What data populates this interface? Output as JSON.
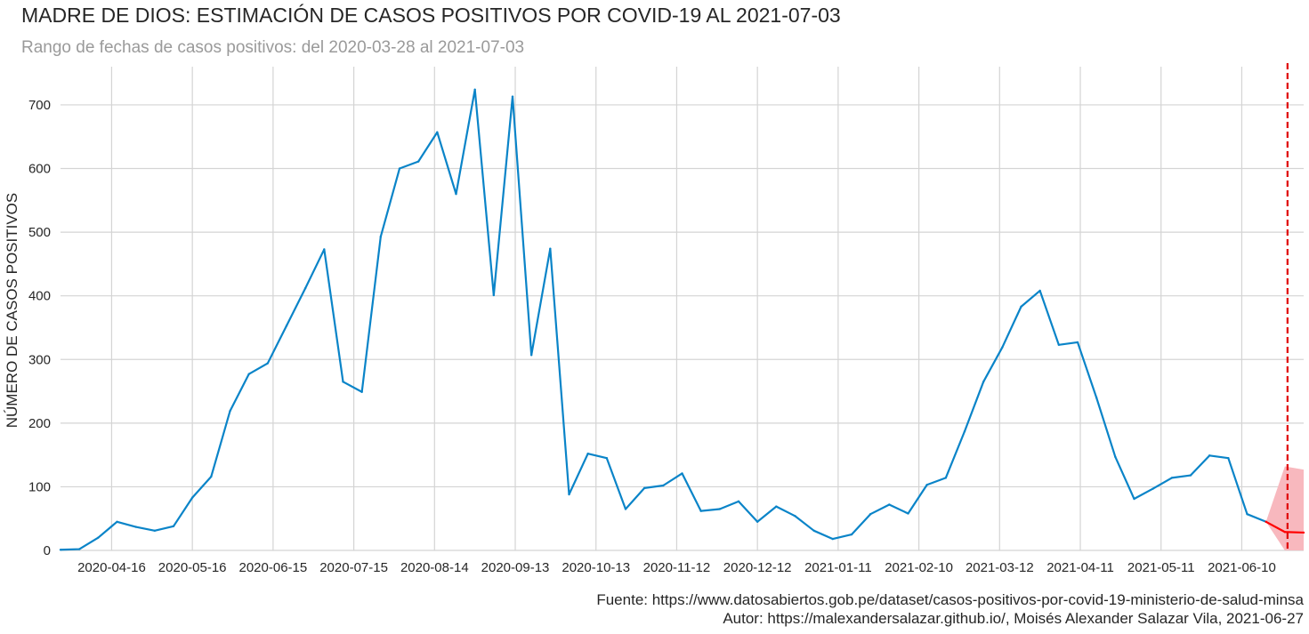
{
  "title": "MADRE DE DIOS: ESTIMACIÓN DE CASOS POSITIVOS POR COVID-19 AL 2021-07-03",
  "subtitle": "Rango de fechas de casos positivos: del 2020-03-28 al 2021-07-03",
  "source_line": "Fuente: https://www.datosabiertos.gob.pe/dataset/casos-positivos-por-covid-19-ministerio-de-salud-minsa",
  "author_line": "Autor: https://malexandersalazar.github.io/, Moisés Alexander Salazar Vila, 2021-06-27",
  "chart_data": {
    "type": "line",
    "title": "MADRE DE DIOS: ESTIMACIÓN DE CASOS POSITIVOS POR COVID-19 AL 2021-07-03",
    "xlabel": "",
    "ylabel": "NÚMERO DE CASOS POSITIVOS",
    "x_ticks": [
      "2020-04-16",
      "2020-05-16",
      "2020-06-15",
      "2020-07-15",
      "2020-08-14",
      "2020-09-13",
      "2020-10-13",
      "2020-11-12",
      "2020-12-12",
      "2021-01-11",
      "2021-02-10",
      "2021-03-12",
      "2021-04-11",
      "2021-05-11",
      "2021-06-10"
    ],
    "y_ticks": [
      0,
      100,
      200,
      300,
      400,
      500,
      600,
      700
    ],
    "xlim": [
      "2020-03-28",
      "2021-07-03"
    ],
    "ylim": [
      0,
      760
    ],
    "grid": true,
    "cutoff_date": "2021-06-27",
    "colors": {
      "observed": "#0a84c8",
      "forecast": "#ff0000",
      "band": "#f8b8be",
      "cutoff": "#e00000",
      "grid": "#d4d4d4"
    },
    "series": [
      {
        "role": "observed",
        "points": [
          [
            "2020-03-28",
            1
          ],
          [
            "2020-04-04",
            2
          ],
          [
            "2020-04-11",
            20
          ],
          [
            "2020-04-18",
            45
          ],
          [
            "2020-04-25",
            37
          ],
          [
            "2020-05-02",
            31
          ],
          [
            "2020-05-09",
            38
          ],
          [
            "2020-05-16",
            83
          ],
          [
            "2020-05-23",
            116
          ],
          [
            "2020-05-30",
            219
          ],
          [
            "2020-06-06",
            277
          ],
          [
            "2020-06-13",
            294
          ],
          [
            "2020-06-20",
            353
          ],
          [
            "2020-06-27",
            412
          ],
          [
            "2020-07-04",
            473
          ],
          [
            "2020-07-11",
            265
          ],
          [
            "2020-07-18",
            249
          ],
          [
            "2020-07-25",
            493
          ],
          [
            "2020-08-01",
            600
          ],
          [
            "2020-08-08",
            611
          ],
          [
            "2020-08-15",
            657
          ],
          [
            "2020-08-22",
            560
          ],
          [
            "2020-08-29",
            724
          ],
          [
            "2020-09-05",
            401
          ],
          [
            "2020-09-12",
            713
          ],
          [
            "2020-09-19",
            307
          ],
          [
            "2020-09-26",
            474
          ],
          [
            "2020-10-03",
            88
          ],
          [
            "2020-10-10",
            152
          ],
          [
            "2020-10-17",
            145
          ],
          [
            "2020-10-24",
            65
          ],
          [
            "2020-10-31",
            98
          ],
          [
            "2020-11-07",
            102
          ],
          [
            "2020-11-14",
            121
          ],
          [
            "2020-11-21",
            62
          ],
          [
            "2020-11-28",
            65
          ],
          [
            "2020-12-05",
            77
          ],
          [
            "2020-12-12",
            45
          ],
          [
            "2020-12-19",
            69
          ],
          [
            "2020-12-26",
            54
          ],
          [
            "2021-01-02",
            31
          ],
          [
            "2021-01-09",
            18
          ],
          [
            "2021-01-16",
            25
          ],
          [
            "2021-01-23",
            57
          ],
          [
            "2021-01-30",
            72
          ],
          [
            "2021-02-06",
            58
          ],
          [
            "2021-02-13",
            103
          ],
          [
            "2021-02-20",
            114
          ],
          [
            "2021-02-27",
            187
          ],
          [
            "2021-03-06",
            265
          ],
          [
            "2021-03-13",
            319
          ],
          [
            "2021-03-20",
            383
          ],
          [
            "2021-03-27",
            408
          ],
          [
            "2021-04-03",
            323
          ],
          [
            "2021-04-10",
            327
          ],
          [
            "2021-04-17",
            240
          ],
          [
            "2021-04-24",
            147
          ],
          [
            "2021-05-01",
            81
          ],
          [
            "2021-05-08",
            97
          ],
          [
            "2021-05-15",
            114
          ],
          [
            "2021-05-22",
            118
          ],
          [
            "2021-05-29",
            149
          ],
          [
            "2021-06-05",
            145
          ],
          [
            "2021-06-12",
            57
          ],
          [
            "2021-06-19",
            45
          ]
        ]
      },
      {
        "role": "forecast",
        "points": [
          [
            "2021-06-19",
            45
          ],
          [
            "2021-06-26",
            29
          ],
          [
            "2021-07-03",
            28
          ]
        ],
        "lower": [
          [
            "2021-06-19",
            45
          ],
          [
            "2021-06-26",
            0
          ],
          [
            "2021-07-03",
            0
          ]
        ],
        "upper": [
          [
            "2021-06-19",
            45
          ],
          [
            "2021-06-26",
            132
          ],
          [
            "2021-07-03",
            127
          ]
        ]
      }
    ]
  }
}
